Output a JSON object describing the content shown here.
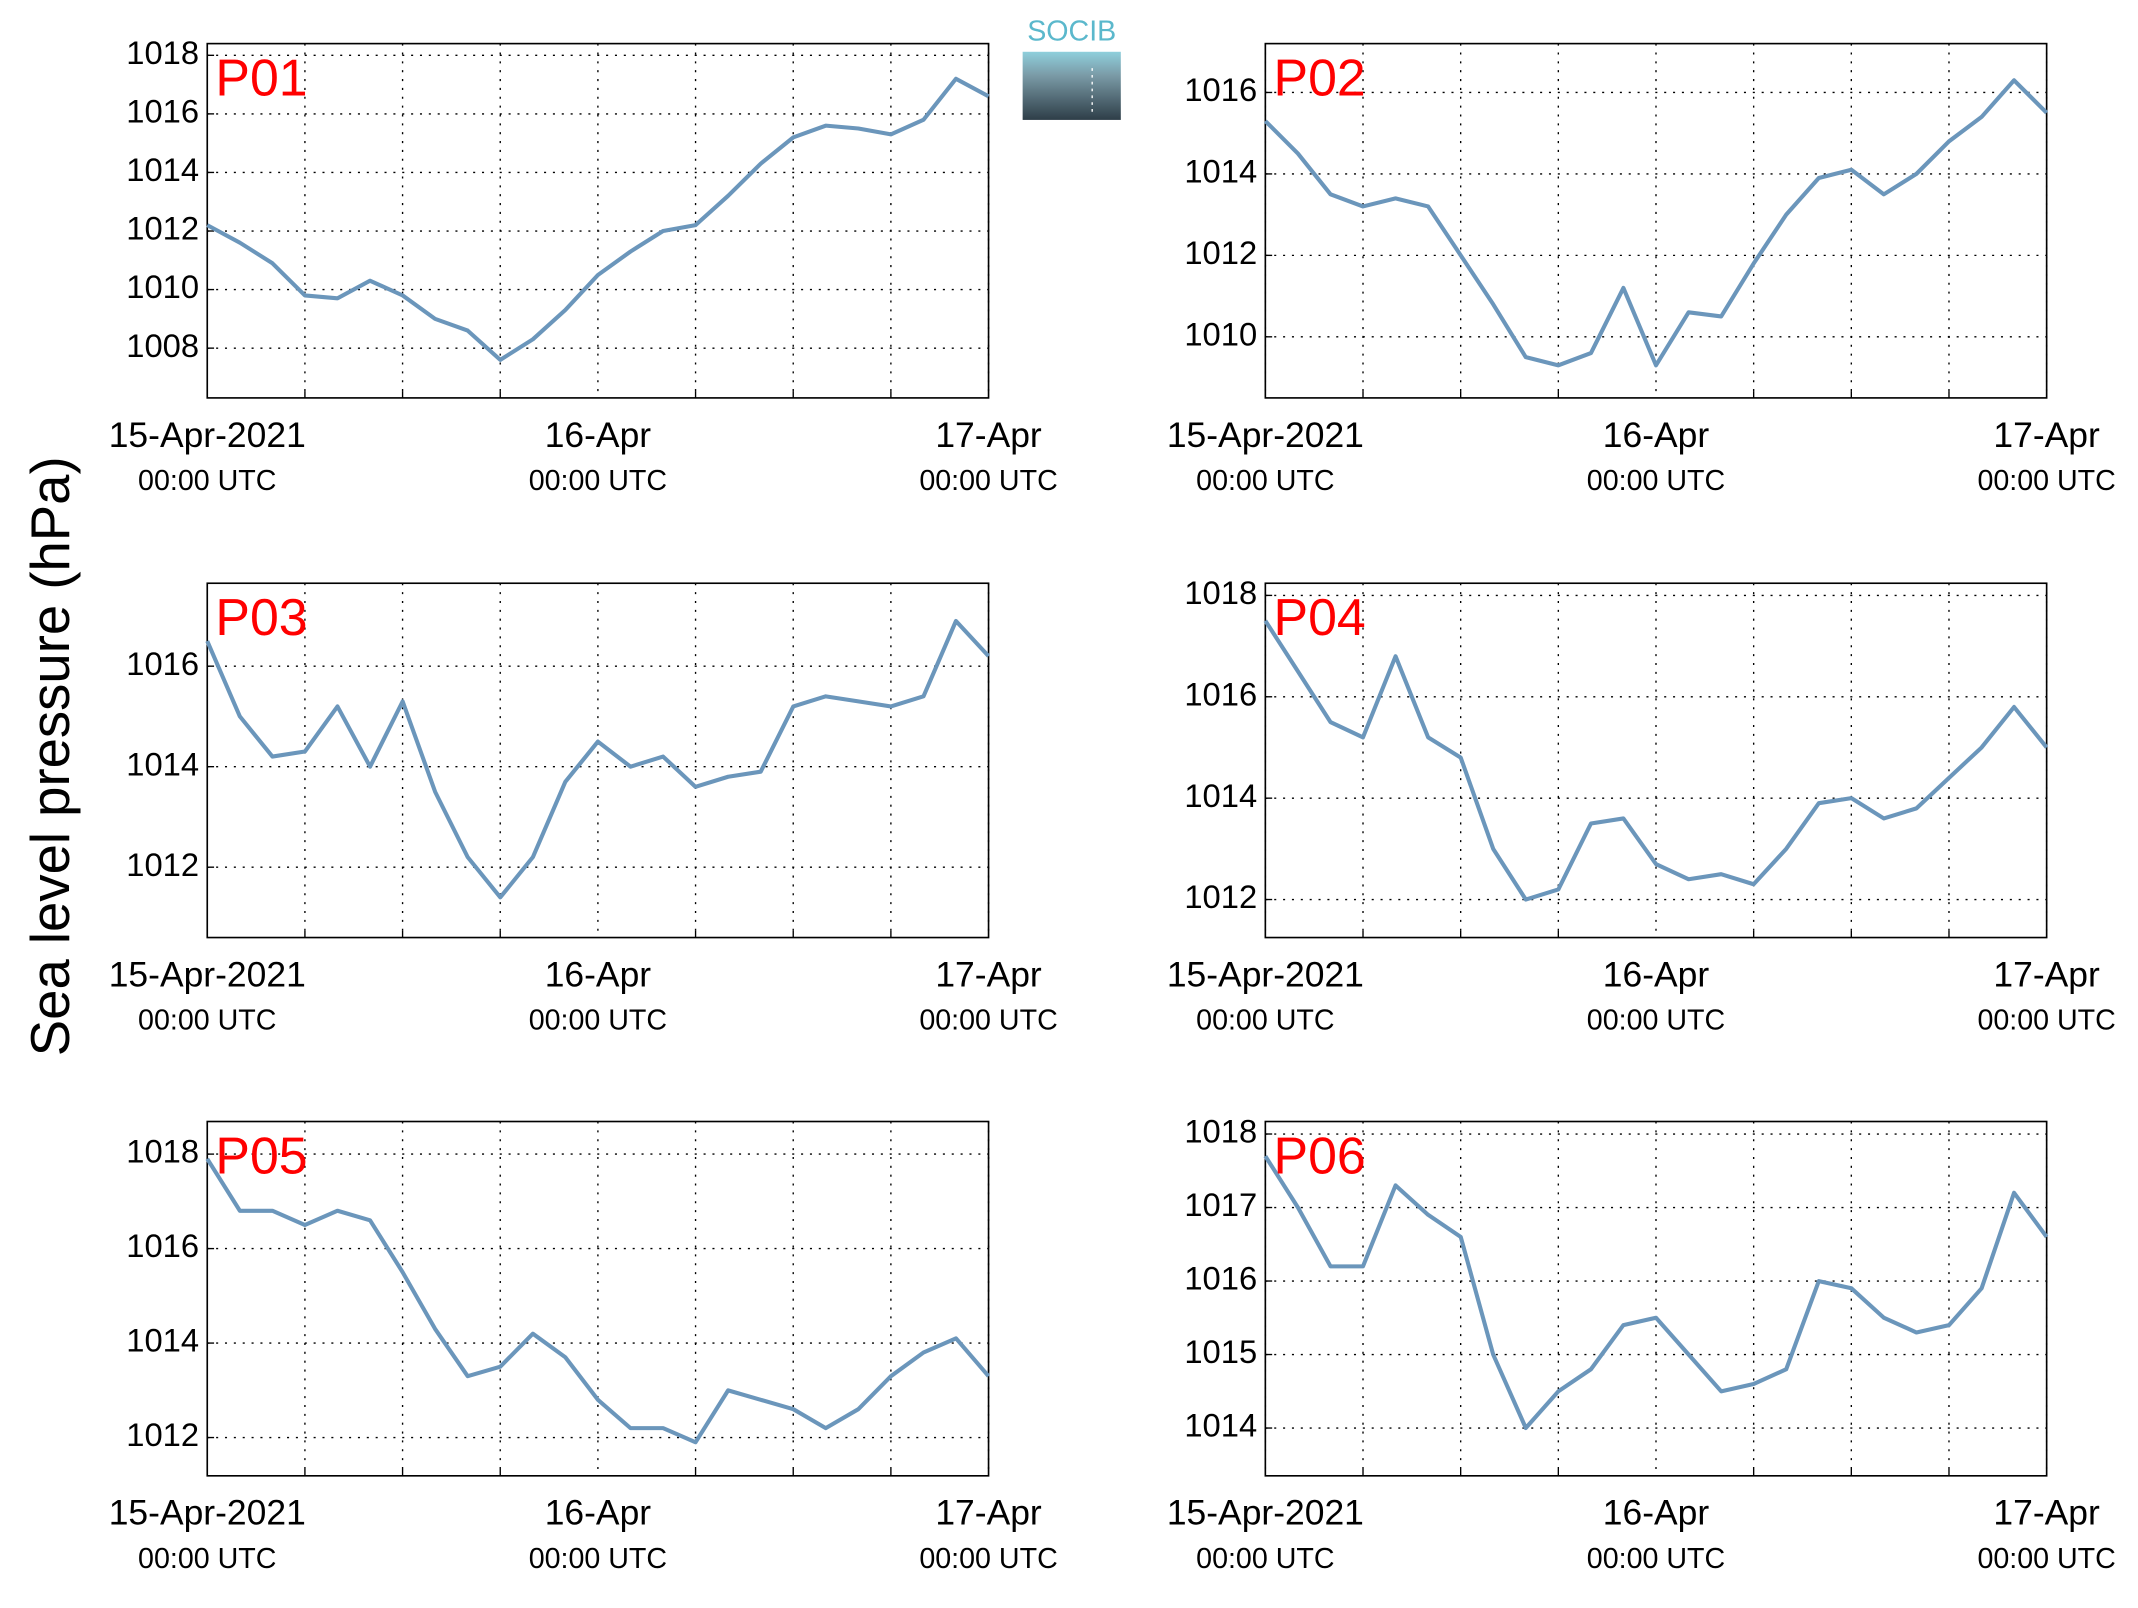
{
  "ylabel": "Sea level pressure (hPa)",
  "logo": "SOCIB",
  "chart_data": [
    {
      "type": "line",
      "title": "P01",
      "color": "#6b96bb",
      "x": [
        "2021-04-15 00:00",
        "2021-04-15 02:00",
        "2021-04-15 04:00",
        "2021-04-15 06:00",
        "2021-04-15 08:00",
        "2021-04-15 10:00",
        "2021-04-15 12:00",
        "2021-04-15 14:00",
        "2021-04-15 16:00",
        "2021-04-15 18:00",
        "2021-04-15 20:00",
        "2021-04-15 22:00",
        "2021-04-16 00:00",
        "2021-04-16 02:00",
        "2021-04-16 04:00",
        "2021-04-16 06:00",
        "2021-04-16 08:00",
        "2021-04-16 10:00",
        "2021-04-16 12:00",
        "2021-04-16 14:00",
        "2021-04-16 16:00",
        "2021-04-16 18:00",
        "2021-04-16 20:00",
        "2021-04-16 22:00",
        "2021-04-17 00:00"
      ],
      "values": [
        1012.2,
        1011.6,
        1010.9,
        1009.8,
        1009.7,
        1010.3,
        1009.8,
        1009.0,
        1008.6,
        1007.6,
        1008.3,
        1009.3,
        1010.5,
        1011.3,
        1012.0,
        1012.2,
        1013.2,
        1014.3,
        1015.2,
        1015.6,
        1015.5,
        1015.3,
        1015.8,
        1017.2,
        1016.6
      ],
      "xlim": [
        "2021-04-15 00:00",
        "2021-04-17 00:00"
      ],
      "xticks": [
        {
          "value": "2021-04-15 00:00",
          "label": "15-Apr-2021",
          "sublabel": "00:00 UTC"
        },
        {
          "value": "2021-04-16 00:00",
          "label": "16-Apr",
          "sublabel": "00:00 UTC"
        },
        {
          "value": "2021-04-17 00:00",
          "label": "17-Apr",
          "sublabel": "00:00 UTC"
        }
      ],
      "xminor": [
        "2021-04-15 06:00",
        "2021-04-15 12:00",
        "2021-04-15 18:00",
        "2021-04-16 06:00",
        "2021-04-16 12:00",
        "2021-04-16 18:00"
      ],
      "ylim": [
        1006.3,
        1018.4
      ],
      "yticks": [
        1008,
        1010,
        1012,
        1014,
        1016,
        1018
      ],
      "grid": true
    },
    {
      "type": "line",
      "title": "P02",
      "color": "#6b96bb",
      "x": [
        "2021-04-15 00:00",
        "2021-04-15 02:00",
        "2021-04-15 04:00",
        "2021-04-15 06:00",
        "2021-04-15 08:00",
        "2021-04-15 10:00",
        "2021-04-15 12:00",
        "2021-04-15 14:00",
        "2021-04-15 16:00",
        "2021-04-15 18:00",
        "2021-04-15 20:00",
        "2021-04-15 22:00",
        "2021-04-16 00:00",
        "2021-04-16 02:00",
        "2021-04-16 04:00",
        "2021-04-16 06:00",
        "2021-04-16 08:00",
        "2021-04-16 10:00",
        "2021-04-16 12:00",
        "2021-04-16 14:00",
        "2021-04-16 16:00",
        "2021-04-16 18:00",
        "2021-04-16 20:00",
        "2021-04-16 22:00",
        "2021-04-17 00:00"
      ],
      "values": [
        1015.3,
        1014.5,
        1013.5,
        1013.2,
        1013.4,
        1013.2,
        1012.0,
        1010.8,
        1009.5,
        1009.3,
        1009.6,
        1011.2,
        1009.3,
        1010.6,
        1010.5,
        1011.8,
        1013.0,
        1013.9,
        1014.1,
        1013.5,
        1014.0,
        1014.8,
        1015.4,
        1016.3,
        1015.5
      ],
      "xlim": [
        "2021-04-15 00:00",
        "2021-04-17 00:00"
      ],
      "xticks": [
        {
          "value": "2021-04-15 00:00",
          "label": "15-Apr-2021",
          "sublabel": "00:00 UTC"
        },
        {
          "value": "2021-04-16 00:00",
          "label": "16-Apr",
          "sublabel": "00:00 UTC"
        },
        {
          "value": "2021-04-17 00:00",
          "label": "17-Apr",
          "sublabel": "00:00 UTC"
        }
      ],
      "xminor": [
        "2021-04-15 06:00",
        "2021-04-15 12:00",
        "2021-04-15 18:00",
        "2021-04-16 06:00",
        "2021-04-16 12:00",
        "2021-04-16 18:00"
      ],
      "ylim": [
        1008.5,
        1017.2
      ],
      "yticks": [
        1010,
        1012,
        1014,
        1016
      ],
      "grid": true
    },
    {
      "type": "line",
      "title": "P03",
      "color": "#6b96bb",
      "x": [
        "2021-04-15 00:00",
        "2021-04-15 02:00",
        "2021-04-15 04:00",
        "2021-04-15 06:00",
        "2021-04-15 08:00",
        "2021-04-15 10:00",
        "2021-04-15 12:00",
        "2021-04-15 14:00",
        "2021-04-15 16:00",
        "2021-04-15 18:00",
        "2021-04-15 20:00",
        "2021-04-15 22:00",
        "2021-04-16 00:00",
        "2021-04-16 02:00",
        "2021-04-16 04:00",
        "2021-04-16 06:00",
        "2021-04-16 08:00",
        "2021-04-16 10:00",
        "2021-04-16 12:00",
        "2021-04-16 14:00",
        "2021-04-16 16:00",
        "2021-04-16 18:00",
        "2021-04-16 20:00",
        "2021-04-16 22:00",
        "2021-04-17 00:00"
      ],
      "values": [
        1016.5,
        1015.0,
        1014.2,
        1014.3,
        1015.2,
        1014.0,
        1015.3,
        1013.5,
        1012.2,
        1011.4,
        1012.2,
        1013.7,
        1014.5,
        1014.0,
        1014.2,
        1013.6,
        1013.8,
        1013.9,
        1015.2,
        1015.4,
        1015.3,
        1015.2,
        1015.4,
        1016.9,
        1016.2
      ],
      "xlim": [
        "2021-04-15 00:00",
        "2021-04-17 00:00"
      ],
      "xticks": [
        {
          "value": "2021-04-15 00:00",
          "label": "15-Apr-2021",
          "sublabel": "00:00 UTC"
        },
        {
          "value": "2021-04-16 00:00",
          "label": "16-Apr",
          "sublabel": "00:00 UTC"
        },
        {
          "value": "2021-04-17 00:00",
          "label": "17-Apr",
          "sublabel": "00:00 UTC"
        }
      ],
      "xminor": [
        "2021-04-15 06:00",
        "2021-04-15 12:00",
        "2021-04-15 18:00",
        "2021-04-16 06:00",
        "2021-04-16 12:00",
        "2021-04-16 18:00"
      ],
      "ylim": [
        1010.6,
        1017.65
      ],
      "yticks": [
        1012,
        1014,
        1016
      ],
      "grid": true
    },
    {
      "type": "line",
      "title": "P04",
      "color": "#6b96bb",
      "x": [
        "2021-04-15 00:00",
        "2021-04-15 02:00",
        "2021-04-15 04:00",
        "2021-04-15 06:00",
        "2021-04-15 08:00",
        "2021-04-15 10:00",
        "2021-04-15 12:00",
        "2021-04-15 14:00",
        "2021-04-15 16:00",
        "2021-04-15 18:00",
        "2021-04-15 20:00",
        "2021-04-15 22:00",
        "2021-04-16 00:00",
        "2021-04-16 02:00",
        "2021-04-16 04:00",
        "2021-04-16 06:00",
        "2021-04-16 08:00",
        "2021-04-16 10:00",
        "2021-04-16 12:00",
        "2021-04-16 14:00",
        "2021-04-16 16:00",
        "2021-04-16 18:00",
        "2021-04-16 20:00",
        "2021-04-16 22:00",
        "2021-04-17 00:00"
      ],
      "values": [
        1017.5,
        1016.5,
        1015.5,
        1015.2,
        1016.8,
        1015.2,
        1014.8,
        1013.0,
        1012.0,
        1012.2,
        1013.5,
        1013.6,
        1012.7,
        1012.4,
        1012.5,
        1012.3,
        1013.0,
        1013.9,
        1014.0,
        1013.6,
        1013.8,
        1014.4,
        1015.0,
        1015.8,
        1015.0
      ],
      "xlim": [
        "2021-04-15 00:00",
        "2021-04-17 00:00"
      ],
      "xticks": [
        {
          "value": "2021-04-15 00:00",
          "label": "15-Apr-2021",
          "sublabel": "00:00 UTC"
        },
        {
          "value": "2021-04-16 00:00",
          "label": "16-Apr",
          "sublabel": "00:00 UTC"
        },
        {
          "value": "2021-04-17 00:00",
          "label": "17-Apr",
          "sublabel": "00:00 UTC"
        }
      ],
      "xminor": [
        "2021-04-15 06:00",
        "2021-04-15 12:00",
        "2021-04-15 18:00",
        "2021-04-16 06:00",
        "2021-04-16 12:00",
        "2021-04-16 18:00"
      ],
      "ylim": [
        1011.25,
        1018.24
      ],
      "yticks": [
        1012,
        1014,
        1016,
        1018
      ],
      "grid": true
    },
    {
      "type": "line",
      "title": "P05",
      "color": "#6b96bb",
      "x": [
        "2021-04-15 00:00",
        "2021-04-15 02:00",
        "2021-04-15 04:00",
        "2021-04-15 06:00",
        "2021-04-15 08:00",
        "2021-04-15 10:00",
        "2021-04-15 12:00",
        "2021-04-15 14:00",
        "2021-04-15 16:00",
        "2021-04-15 18:00",
        "2021-04-15 20:00",
        "2021-04-15 22:00",
        "2021-04-16 00:00",
        "2021-04-16 02:00",
        "2021-04-16 04:00",
        "2021-04-16 06:00",
        "2021-04-16 08:00",
        "2021-04-16 10:00",
        "2021-04-16 12:00",
        "2021-04-16 14:00",
        "2021-04-16 16:00",
        "2021-04-16 18:00",
        "2021-04-16 20:00",
        "2021-04-16 22:00",
        "2021-04-17 00:00"
      ],
      "values": [
        1017.9,
        1016.8,
        1016.8,
        1016.5,
        1016.8,
        1016.6,
        1015.5,
        1014.3,
        1013.3,
        1013.5,
        1014.2,
        1013.7,
        1012.8,
        1012.2,
        1012.2,
        1011.9,
        1013.0,
        1012.8,
        1012.6,
        1012.2,
        1012.6,
        1013.3,
        1013.8,
        1014.1,
        1013.3
      ],
      "xlim": [
        "2021-04-15 00:00",
        "2021-04-17 00:00"
      ],
      "xticks": [
        {
          "value": "2021-04-15 00:00",
          "label": "15-Apr-2021",
          "sublabel": "00:00 UTC"
        },
        {
          "value": "2021-04-16 00:00",
          "label": "16-Apr",
          "sublabel": "00:00 UTC"
        },
        {
          "value": "2021-04-17 00:00",
          "label": "17-Apr",
          "sublabel": "00:00 UTC"
        }
      ],
      "xminor": [
        "2021-04-15 06:00",
        "2021-04-15 12:00",
        "2021-04-15 18:00",
        "2021-04-16 06:00",
        "2021-04-16 12:00",
        "2021-04-16 18:00"
      ],
      "ylim": [
        1011.19,
        1018.69
      ],
      "yticks": [
        1012,
        1014,
        1016,
        1018
      ],
      "grid": true
    },
    {
      "type": "line",
      "title": "P06",
      "color": "#6b96bb",
      "x": [
        "2021-04-15 00:00",
        "2021-04-15 02:00",
        "2021-04-15 04:00",
        "2021-04-15 06:00",
        "2021-04-15 08:00",
        "2021-04-15 10:00",
        "2021-04-15 12:00",
        "2021-04-15 14:00",
        "2021-04-15 16:00",
        "2021-04-15 18:00",
        "2021-04-15 20:00",
        "2021-04-15 22:00",
        "2021-04-16 00:00",
        "2021-04-16 02:00",
        "2021-04-16 04:00",
        "2021-04-16 06:00",
        "2021-04-16 08:00",
        "2021-04-16 10:00",
        "2021-04-16 12:00",
        "2021-04-16 14:00",
        "2021-04-16 16:00",
        "2021-04-16 18:00",
        "2021-04-16 20:00",
        "2021-04-16 22:00",
        "2021-04-17 00:00"
      ],
      "values": [
        1017.7,
        1017.0,
        1016.2,
        1016.2,
        1017.3,
        1016.9,
        1016.6,
        1015.0,
        1014.0,
        1014.5,
        1014.8,
        1015.4,
        1015.5,
        1015.0,
        1014.5,
        1014.6,
        1014.8,
        1016.0,
        1015.9,
        1015.5,
        1015.3,
        1015.4,
        1015.9,
        1017.2,
        1016.6
      ],
      "xlim": [
        "2021-04-15 00:00",
        "2021-04-17 00:00"
      ],
      "xticks": [
        {
          "value": "2021-04-15 00:00",
          "label": "15-Apr-2021",
          "sublabel": "00:00 UTC"
        },
        {
          "value": "2021-04-16 00:00",
          "label": "16-Apr",
          "sublabel": "00:00 UTC"
        },
        {
          "value": "2021-04-17 00:00",
          "label": "17-Apr",
          "sublabel": "00:00 UTC"
        }
      ],
      "xminor": [
        "2021-04-15 06:00",
        "2021-04-15 12:00",
        "2021-04-15 18:00",
        "2021-04-16 06:00",
        "2021-04-16 12:00",
        "2021-04-16 18:00"
      ],
      "ylim": [
        1013.35,
        1018.17
      ],
      "yticks": [
        1014,
        1015,
        1016,
        1017,
        1018
      ],
      "grid": true
    }
  ]
}
